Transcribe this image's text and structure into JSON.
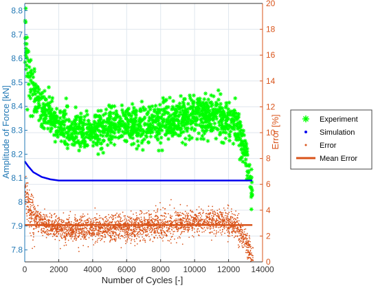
{
  "chart_data": {
    "type": "scatter",
    "xlabel": "Number of Cycles [-]",
    "ylabel_left": "Amplitude of Force [kN]",
    "ylabel_right": "Error [%]",
    "xlim": [
      0,
      14000
    ],
    "ylim_left": [
      7.75,
      8.83
    ],
    "ylim_right": [
      0,
      20
    ],
    "x_ticks": [
      "0",
      "2000",
      "4000",
      "6000",
      "8000",
      "10000",
      "12000",
      "14000"
    ],
    "y_left_ticks": [
      "7.8",
      "7.9",
      "8",
      "8.1",
      "8.2",
      "8.3",
      "8.4",
      "8.5",
      "8.6",
      "8.7",
      "8.8"
    ],
    "y_right_ticks": [
      "0",
      "2",
      "4",
      "6",
      "8",
      "10",
      "12",
      "14",
      "16",
      "18",
      "20"
    ],
    "grid": true,
    "legend_position": "right",
    "series": [
      {
        "name": "Experiment",
        "axis": "left",
        "marker": "asterisk",
        "color": "#00ff00",
        "trend": {
          "x": [
            0,
            100,
            300,
            600,
            1000,
            1500,
            2000,
            3000,
            4000,
            5000,
            6000,
            7000,
            8000,
            9000,
            10000,
            11000,
            12000,
            12500,
            13000,
            13300,
            13400
          ],
          "y": [
            8.72,
            8.64,
            8.52,
            8.44,
            8.39,
            8.35,
            8.32,
            8.29,
            8.29,
            8.31,
            8.32,
            8.32,
            8.33,
            8.35,
            8.36,
            8.36,
            8.35,
            8.31,
            8.22,
            8.08,
            8.02
          ]
        },
        "spread": 0.04,
        "count": 1400
      },
      {
        "name": "Simulation",
        "axis": "left",
        "color": "#0000ee",
        "x": [
          0,
          200,
          500,
          1000,
          1500,
          2000,
          4000,
          8000,
          12000,
          13400
        ],
        "y": [
          8.17,
          8.15,
          8.125,
          8.105,
          8.095,
          8.09,
          8.09,
          8.09,
          8.09,
          8.09
        ]
      },
      {
        "name": "Error",
        "axis": "right",
        "marker": "dot",
        "color": "#d95319",
        "trend": {
          "x": [
            0,
            100,
            300,
            600,
            1000,
            1500,
            2000,
            3000,
            4000,
            5000,
            6000,
            7000,
            8000,
            9000,
            10000,
            11000,
            12000,
            12500,
            13000,
            13200,
            13350,
            13450
          ],
          "y": [
            6.2,
            5.0,
            4.0,
            3.4,
            3.0,
            2.8,
            2.6,
            2.5,
            2.5,
            2.6,
            2.6,
            2.7,
            2.8,
            3.0,
            3.1,
            3.2,
            3.1,
            2.6,
            1.7,
            1.0,
            0.4,
            0.0
          ]
        },
        "spread": 0.5,
        "count": 2800
      },
      {
        "name": "Mean Error",
        "axis": "right",
        "color": "#d95319",
        "x": [
          0,
          13400
        ],
        "y": [
          2.85,
          2.85
        ]
      }
    ]
  }
}
